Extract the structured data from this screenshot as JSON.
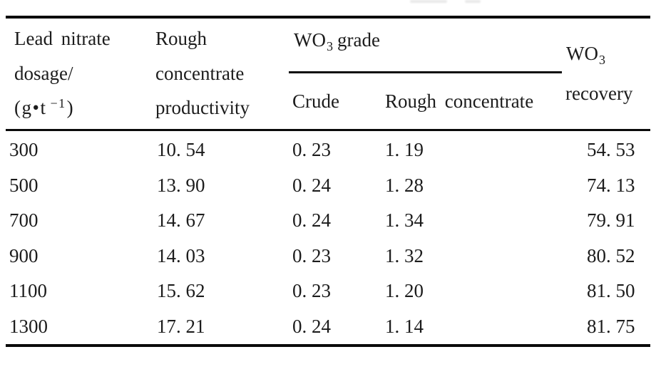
{
  "colors": {
    "text": "#1c1c1c",
    "rule": "#0a0a0a",
    "background": "#ffffff"
  },
  "table": {
    "header": {
      "dosage": {
        "line1": "Lead nitrate",
        "line2": "dosage/",
        "unit_pre": "(g•t",
        "unit_sup": "−1",
        "unit_close": ")"
      },
      "productivity": {
        "line1": "Rough",
        "line2": "concentrate",
        "line3": "productivity"
      },
      "grade_group": {
        "pre": "WO",
        "sub": "3",
        "post": "grade"
      },
      "sub_crude": "Crude",
      "sub_rough": "Rough concentrate",
      "recovery": {
        "line1_pre": "WO",
        "line1_sub": "3",
        "line2": "recovery"
      }
    },
    "rows": [
      {
        "dosage": "300",
        "productivity": "10. 54",
        "crude": "0. 23",
        "rough": "1. 19",
        "recovery": "54. 53"
      },
      {
        "dosage": "500",
        "productivity": "13. 90",
        "crude": "0. 24",
        "rough": "1. 28",
        "recovery": "74. 13"
      },
      {
        "dosage": "700",
        "productivity": "14. 67",
        "crude": "0. 24",
        "rough": "1. 34",
        "recovery": "79. 91"
      },
      {
        "dosage": "900",
        "productivity": "14. 03",
        "crude": "0. 23",
        "rough": "1. 32",
        "recovery": "80. 52"
      },
      {
        "dosage": "1100",
        "productivity": "15. 62",
        "crude": "0. 23",
        "rough": "1. 20",
        "recovery": "81. 50"
      },
      {
        "dosage": "1300",
        "productivity": "17. 21",
        "crude": "0. 24",
        "rough": "1. 14",
        "recovery": "81. 75"
      }
    ]
  }
}
